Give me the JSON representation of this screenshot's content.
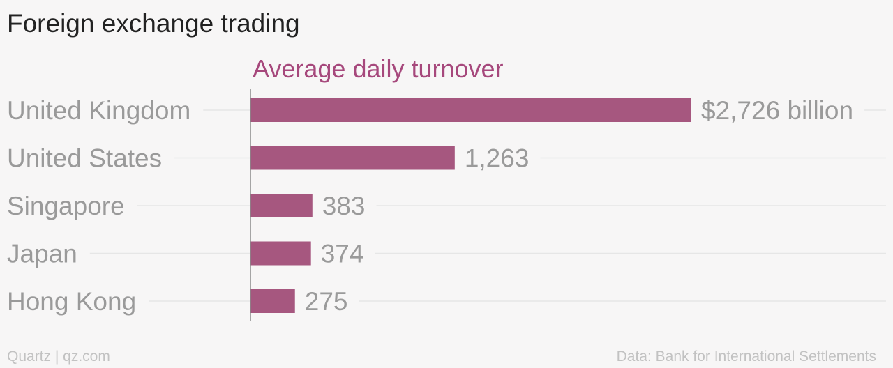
{
  "chart_data": {
    "type": "bar",
    "orientation": "horizontal",
    "title": "Foreign exchange trading",
    "subtitle": "Average daily turnover",
    "categories": [
      "United Kingdom",
      "United States",
      "Singapore",
      "Japan",
      "Hong Kong"
    ],
    "values": [
      2726,
      1263,
      383,
      374,
      275
    ],
    "value_labels": [
      "$2,726 billion",
      "1,263",
      "383",
      "374",
      "275"
    ],
    "xlim": [
      0,
      2726
    ],
    "grid": true,
    "bar_color": "#a6577f"
  },
  "footer": {
    "source_left": "Quartz | qz.com",
    "source_right": "Data: Bank for International Settlements"
  }
}
